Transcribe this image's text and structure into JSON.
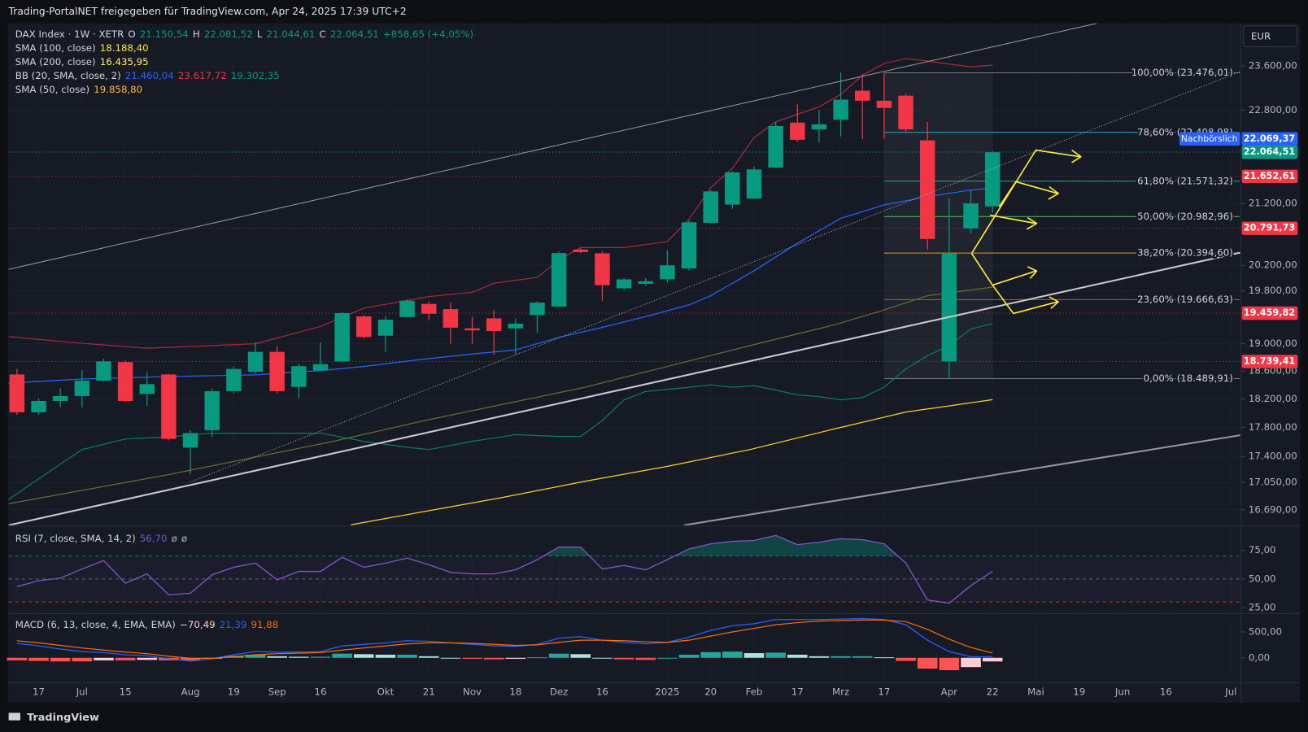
{
  "header": {
    "attribution": "Trading-PortalNET freigegeben für TradingView.com, Apr 24, 2025 17:39 UTC+2",
    "currency": "EUR",
    "brand": "TradingView"
  },
  "chart_data": [
    {
      "type": "candlestick",
      "legend": [
        [
          {
            "text": "DAX Index · 1W · XETR",
            "color": "#d1d4dc"
          },
          {
            "text": "O",
            "color": "#d1d4dc"
          },
          {
            "text": "21.150,54",
            "color": "#089981"
          },
          {
            "text": "H",
            "color": "#d1d4dc"
          },
          {
            "text": "22.081,52",
            "color": "#089981"
          },
          {
            "text": "L",
            "color": "#d1d4dc"
          },
          {
            "text": "21.044,61",
            "color": "#089981"
          },
          {
            "text": "C",
            "color": "#d1d4dc"
          },
          {
            "text": "22.064,51",
            "color": "#089981"
          },
          {
            "text": "+858,65 (+4,05%)",
            "color": "#089981"
          }
        ],
        [
          {
            "text": "SMA (100, close)",
            "color": "#d1d4dc"
          },
          {
            "text": "18.188,40",
            "color": "#ffeb3b"
          }
        ],
        [
          {
            "text": "SMA (200, close)",
            "color": "#d1d4dc"
          },
          {
            "text": "16.435,95",
            "color": "#fff176"
          }
        ],
        [
          {
            "text": "BB (20, SMA, close, 2)",
            "color": "#d1d4dc"
          },
          {
            "text": "21.460,04",
            "color": "#2962ff"
          },
          {
            "text": "23.617,72",
            "color": "#f23645"
          },
          {
            "text": "19.302,35",
            "color": "#089981"
          }
        ],
        [
          {
            "text": "SMA (50, close)",
            "color": "#d1d4dc"
          },
          {
            "text": "19.858,80",
            "color": "#ffb74d"
          }
        ]
      ],
      "log_scale": true,
      "ylim": [
        16490,
        24400
      ],
      "yticks": [
        {
          "value": 23600,
          "label": "23.600,00"
        },
        {
          "value": 22800,
          "label": "22.800,00"
        },
        {
          "value": 21200,
          "label": "21.200,00"
        },
        {
          "value": 20200,
          "label": "20.200,00"
        },
        {
          "value": 19800,
          "label": "19.800,00"
        },
        {
          "value": 19000,
          "label": "19.000,00"
        },
        {
          "value": 18600,
          "label": "18.600,00"
        },
        {
          "value": 18200,
          "label": "18.200,00"
        },
        {
          "value": 17800,
          "label": "17.800,00"
        },
        {
          "value": 17400,
          "label": "17.400,00"
        },
        {
          "value": 17050,
          "label": "17.050,00"
        },
        {
          "value": 16690,
          "label": "16.690,00"
        }
      ],
      "xlim": [
        -0.4,
        56.4
      ],
      "xticks": [
        {
          "value": 1,
          "label": "17"
        },
        {
          "value": 3,
          "label": "Jul"
        },
        {
          "value": 5,
          "label": "15"
        },
        {
          "value": 8,
          "label": "Aug"
        },
        {
          "value": 10,
          "label": "19"
        },
        {
          "value": 12,
          "label": "Sep"
        },
        {
          "value": 14,
          "label": "16"
        },
        {
          "value": 17,
          "label": "Okt"
        },
        {
          "value": 19,
          "label": "21"
        },
        {
          "value": 21,
          "label": "Nov"
        },
        {
          "value": 23,
          "label": "18"
        },
        {
          "value": 25,
          "label": "Dez"
        },
        {
          "value": 27,
          "label": "16"
        },
        {
          "value": 30,
          "label": "2025"
        },
        {
          "value": 32,
          "label": "20"
        },
        {
          "value": 34,
          "label": "Feb"
        },
        {
          "value": 36,
          "label": "17"
        },
        {
          "value": 38,
          "label": "Mrz"
        },
        {
          "value": 40,
          "label": "17"
        },
        {
          "value": 43,
          "label": "Apr"
        },
        {
          "value": 45,
          "label": "22"
        },
        {
          "value": 47,
          "label": "Mai"
        },
        {
          "value": 49,
          "label": "19"
        },
        {
          "value": 51,
          "label": "Jun"
        },
        {
          "value": 53,
          "label": "16"
        },
        {
          "value": 56,
          "label": "Jul"
        }
      ],
      "grid": true,
      "up_color": "#089981",
      "down_color": "#f23645",
      "open": [
        18550,
        18010,
        18170,
        18240,
        18460,
        18730,
        18270,
        18550,
        17520,
        17760,
        18310,
        18590,
        18880,
        18370,
        18610,
        18740,
        19410,
        19120,
        19400,
        19600,
        19520,
        19230,
        19380,
        19230,
        19430,
        19560,
        20450,
        20390,
        19840,
        19910,
        19980,
        20150,
        20880,
        21180,
        21280,
        21800,
        22580,
        22460,
        22630,
        23150,
        22970,
        23060,
        22270,
        18739,
        20791,
        21150.54
      ],
      "high": [
        18630,
        18210,
        18350,
        18610,
        18780,
        18750,
        18580,
        18560,
        17760,
        18350,
        18670,
        19020,
        18960,
        18700,
        19020,
        19480,
        19430,
        19410,
        19666,
        19640,
        19620,
        19400,
        19510,
        19380,
        19640,
        20420,
        20480,
        20420,
        20000,
        20000,
        20440,
        20920,
        21420,
        21740,
        21820,
        22590,
        22900,
        22800,
        23476,
        23450,
        23476,
        23090,
        22590,
        21290,
        21420,
        22081.52
      ],
      "low": [
        17975,
        17975,
        18080,
        18080,
        18450,
        18150,
        18100,
        17620,
        17160,
        17670,
        18280,
        18560,
        18280,
        18210,
        18600,
        18720,
        19080,
        18880,
        19400,
        19350,
        19000,
        19000,
        18840,
        18850,
        19160,
        19550,
        20390,
        19650,
        19820,
        19880,
        19930,
        20120,
        20870,
        21110,
        21270,
        21790,
        22250,
        22230,
        22340,
        22290,
        22300,
        22410,
        20450,
        18489,
        20710,
        21044.61
      ],
      "close": [
        18010,
        18170,
        18240,
        18460,
        18740,
        18170,
        18410,
        17640,
        17720,
        18310,
        18630,
        18880,
        18310,
        18670,
        18700,
        19460,
        19100,
        19360,
        19650,
        19450,
        19240,
        19200,
        19190,
        19300,
        19620,
        20394,
        20410,
        19890,
        19980,
        19950,
        20200,
        20890,
        21400,
        21720,
        21770,
        22520,
        22280,
        22550,
        22990,
        22970,
        22840,
        22460,
        20620,
        20394,
        21200,
        22064.51
      ],
      "overlays": [
        {
          "color": "#a62a3c",
          "x": [
            -0.4,
            3,
            6,
            11,
            14,
            16,
            19,
            21,
            22,
            24,
            25,
            26,
            28,
            30,
            31,
            32,
            33,
            34,
            35,
            37,
            38,
            39,
            40,
            41,
            42,
            44,
            45
          ],
          "values": [
            19107,
            19007,
            18934,
            19000,
            19258,
            19535,
            19713,
            19778,
            19919,
            20010,
            20284,
            20482,
            20482,
            20577,
            20940,
            21464,
            21788,
            22316,
            22595,
            22861,
            23083,
            23432,
            23645,
            23737,
            23692,
            23585,
            23617.72
          ]
        },
        {
          "color": "#2962ff",
          "x": [
            -0.4,
            3,
            7,
            11,
            14,
            16,
            18.5,
            21,
            23,
            25,
            27,
            29,
            31,
            32,
            34,
            36,
            38,
            40,
            42,
            44,
            45
          ],
          "values": [
            18425,
            18484,
            18520,
            18544,
            18606,
            18666,
            18763,
            18849,
            18909,
            19095,
            19245,
            19407,
            19585,
            19726,
            20114,
            20551,
            20955,
            21174,
            21312,
            21422,
            21460.04
          ]
        },
        {
          "color": "#0b7a68",
          "x": [
            -0.4,
            1,
            3,
            5,
            7,
            9,
            11,
            14,
            16,
            18,
            19,
            21,
            23,
            25,
            26,
            27,
            28,
            29,
            31,
            32,
            33,
            34,
            35,
            36,
            37,
            38,
            39,
            40,
            41,
            42,
            43,
            44,
            45
          ],
          "values": [
            16823,
            17098,
            17493,
            17639,
            17668,
            17719,
            17719,
            17719,
            17606,
            17525,
            17493,
            17606,
            17698,
            17673,
            17673,
            17894,
            18186,
            18305,
            18366,
            18400,
            18366,
            18388,
            18325,
            18256,
            18232,
            18186,
            18220,
            18366,
            18630,
            18824,
            18972,
            19220,
            19302.35
          ]
        },
        {
          "color": "#6d6a3c",
          "x": [
            -0.4,
            7,
            14.6,
            18.8,
            26.2,
            30,
            33.8,
            37.7,
            40,
            42,
            45
          ],
          "values": [
            16768,
            17155,
            17606,
            17894,
            18366,
            18666,
            18972,
            19282,
            19508,
            19726,
            19858.8
          ]
        },
        {
          "color": "#f7d52c",
          "x": [
            15.4,
            22.3,
            26.2,
            30,
            33.8,
            37.7,
            41,
            45
          ],
          "values": [
            16496,
            16846,
            17066,
            17266,
            17493,
            17778,
            18013,
            18188.4
          ]
        }
      ],
      "fib": [
        {
          "label": "100,00% (23.476,01)",
          "value": 23476.01,
          "color": "#787b86"
        },
        {
          "label": "78,60% (22.408,98)",
          "value": 22408.98,
          "color": "#26a5c9"
        },
        {
          "label": "61,80% (21.571,32)",
          "value": 21571.32,
          "color": "#26a69a"
        },
        {
          "label": "50,00% (20.982,96)",
          "value": 20982.96,
          "color": "#4caf50"
        },
        {
          "label": "38,20% (20.394,60)",
          "value": 20394.6,
          "color": "#ff9800"
        },
        {
          "label": "23,60% (19.666,63)",
          "value": 19666.63,
          "color": "#f23645"
        },
        {
          "label": "0,00% (18.489,91)",
          "value": 18489.91,
          "color": "#787b86"
        }
      ],
      "price_tags": [
        {
          "value": 22069.37,
          "label": "22.069,37",
          "color": "#2962ff",
          "note": "Nachbörslich"
        },
        {
          "value": 22064.51,
          "label": "22.064,51",
          "color": "#089981"
        },
        {
          "value": 21652.61,
          "label": "21.652,61",
          "color": "#f23645"
        },
        {
          "value": 20791.73,
          "label": "20.791,73",
          "color": "#f23645"
        },
        {
          "value": 19459.82,
          "label": "19.459,82",
          "color": "#f23645"
        },
        {
          "value": 18739.41,
          "label": "18.739,41",
          "color": "#f23645"
        }
      ]
    },
    {
      "type": "line",
      "legend": [
        [
          {
            "text": "RSI (7, close, SMA, 14, 2)",
            "color": "#d1d4dc"
          },
          {
            "text": "56,70",
            "color": "#7e57c2"
          },
          {
            "text": "ø",
            "color": "#b2b5be"
          },
          {
            "text": "ø",
            "color": "#b2b5be"
          }
        ]
      ],
      "ylim": [
        20.6,
        95.3
      ],
      "yticks": [
        {
          "value": 75,
          "label": "75,00"
        },
        {
          "value": 50,
          "label": "50,00"
        },
        {
          "value": 25,
          "label": "25,00"
        }
      ],
      "levels": [
        {
          "value": 70,
          "color": "#089981"
        },
        {
          "value": 50,
          "color": "#787b86"
        },
        {
          "value": 30,
          "color": "#f23645"
        }
      ],
      "overbought_fill": "#089981",
      "series": [
        {
          "color": "#7e57c2",
          "values": [
            43.4,
            48.5,
            50.7,
            58.7,
            66.0,
            46.4,
            54.4,
            36.2,
            37.6,
            53.6,
            60.2,
            63.8,
            49.3,
            56.6,
            56.6,
            68.9,
            60.2,
            63.8,
            68.2,
            62.4,
            55.8,
            54.4,
            54.4,
            58.0,
            66.8,
            77.7,
            77.7,
            58.7,
            61.7,
            58.0,
            66.8,
            76.2,
            80.6,
            82.8,
            83.5,
            87.9,
            79.9,
            82.0,
            85.0,
            84.2,
            80.6,
            63.8,
            31.8,
            28.9,
            44.2,
            56.7
          ]
        }
      ]
    },
    {
      "type": "macd",
      "legend": [
        [
          {
            "text": "MACD (6, 13, close, 4, EMA, EMA)",
            "color": "#d1d4dc"
          },
          {
            "text": "−70,49",
            "color": "#ffcdd2"
          },
          {
            "text": "21,39",
            "color": "#2962ff"
          },
          {
            "text": "91,88",
            "color": "#ff6d00"
          }
        ]
      ],
      "ylim": [
        -468,
        839
      ],
      "yticks": [
        {
          "value": 500,
          "label": "500,00"
        },
        {
          "value": 0,
          "label": "0,00"
        }
      ],
      "histogram": [
        -50,
        -60,
        -70,
        -70,
        -50,
        -50,
        -40,
        -50,
        -50,
        -10,
        40,
        60,
        30,
        20,
        20,
        80,
        70,
        60,
        60,
        30,
        0,
        -20,
        -30,
        -20,
        10,
        80,
        70,
        0,
        -30,
        -40,
        0,
        60,
        110,
        120,
        90,
        100,
        60,
        30,
        30,
        30,
        10,
        -60,
        -210,
        -240,
        -180,
        -70.49
      ],
      "histogram_colors": [
        "#26a69a",
        "#b2dfdb",
        "#ffcdd2",
        "#ff5252"
      ],
      "series": [
        {
          "color": "#2962ff",
          "values": [
            280,
            230,
            170,
            120,
            100,
            60,
            40,
            -20,
            -60,
            -20,
            60,
            120,
            110,
            110,
            120,
            230,
            260,
            290,
            330,
            320,
            290,
            260,
            230,
            220,
            260,
            380,
            410,
            340,
            300,
            270,
            300,
            400,
            530,
            620,
            660,
            740,
            740,
            740,
            750,
            760,
            740,
            640,
            340,
            120,
            20,
            21.39
          ]
        },
        {
          "color": "#ff6d00",
          "values": [
            330,
            290,
            240,
            190,
            150,
            110,
            80,
            30,
            -10,
            -10,
            20,
            60,
            80,
            90,
            100,
            150,
            190,
            230,
            270,
            290,
            290,
            280,
            260,
            240,
            250,
            300,
            340,
            340,
            330,
            310,
            300,
            340,
            420,
            500,
            570,
            640,
            680,
            710,
            720,
            730,
            730,
            700,
            550,
            360,
            200,
            91.88
          ]
        }
      ]
    }
  ]
}
